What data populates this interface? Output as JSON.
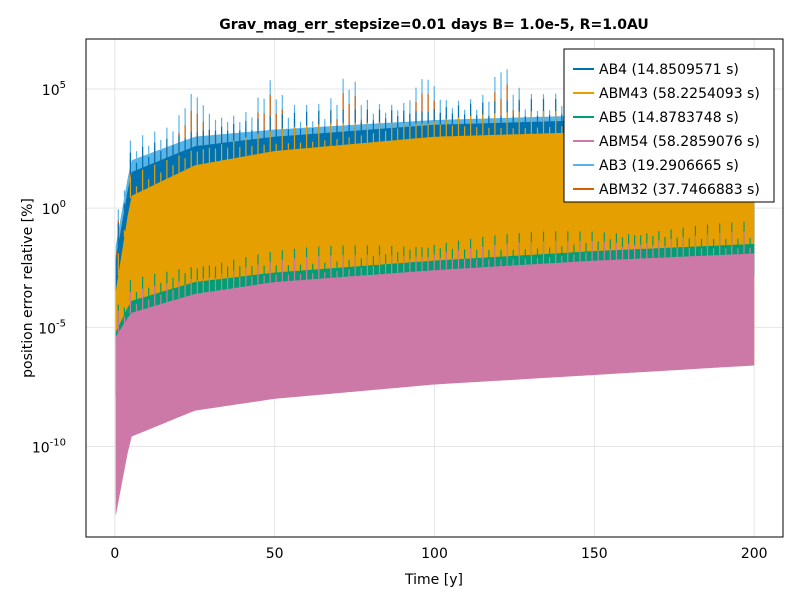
{
  "chart_data": {
    "type": "line",
    "title": "Grav_mag_err_stepsize=0.01 days B= 1.0e-5, R=1.0AU",
    "xlabel": "Time [y]",
    "ylabel": "position error relative [%]",
    "xlim": [
      -9,
      209
    ],
    "ylim_log10": [
      -13.8,
      7.1
    ],
    "y_scale": "log",
    "x_ticks": [
      0,
      50,
      100,
      150,
      200
    ],
    "y_ticks": [
      {
        "exp": 5,
        "base": "10",
        "sup": "5"
      },
      {
        "exp": 0,
        "base": "10",
        "sup": "0"
      },
      {
        "exp": -5,
        "base": "10",
        "sup": "-5"
      },
      {
        "exp": -10,
        "base": "10",
        "sup": "-10"
      }
    ],
    "grid": true,
    "legend_position": "top-right",
    "series": [
      {
        "name": "AB4 (14.8509571 s)",
        "color": "#0072b2",
        "envelope_log10": {
          "x": [
            0.3,
            5,
            25,
            50,
            100,
            150,
            200
          ],
          "upper": [
            -2.2,
            1.5,
            2.6,
            3.0,
            3.5,
            3.7,
            3.6
          ],
          "lower": [
            -7.5,
            -5.5,
            -4.6,
            -4.1,
            -3.5,
            -3.0,
            -2.6
          ]
        }
      },
      {
        "name": "ABM43 (58.2254093 s)",
        "color": "#e69f00",
        "envelope_log10": {
          "x": [
            0.3,
            5,
            25,
            50,
            100,
            150,
            200
          ],
          "upper": [
            -3.5,
            0.5,
            1.8,
            2.4,
            3.0,
            3.2,
            3.2
          ],
          "lower": [
            -12.9,
            -9.5,
            -8.4,
            -7.9,
            -7.3,
            -6.9,
            -6.6
          ]
        }
      },
      {
        "name": "AB5 (14.8783748 s)",
        "color": "#009e73",
        "envelope_log10": {
          "x": [
            0.3,
            5,
            25,
            50,
            100,
            150,
            200
          ],
          "upper": [
            -5.2,
            -3.9,
            -3.1,
            -2.7,
            -2.2,
            -1.8,
            -1.5
          ],
          "lower": [
            -8.0,
            -5.6,
            -4.8,
            -4.3,
            -3.6,
            -3.1,
            -2.8
          ]
        }
      },
      {
        "name": "ABM54 (58.2859076 s)",
        "color": "#cc79a7",
        "envelope_log10": {
          "x": [
            0.3,
            5,
            25,
            50,
            100,
            150,
            200
          ],
          "upper": [
            -5.4,
            -4.4,
            -3.6,
            -3.1,
            -2.6,
            -2.2,
            -1.9
          ],
          "lower": [
            -12.9,
            -9.6,
            -8.5,
            -8.0,
            -7.4,
            -7.0,
            -6.6
          ]
        }
      },
      {
        "name": "AB3 (19.2906665 s)",
        "color": "#56b4e9",
        "envelope_log10": {
          "x": [
            0.3,
            5,
            25,
            50,
            100,
            150,
            200
          ],
          "upper": [
            -1.6,
            2.0,
            3.0,
            3.3,
            3.7,
            3.9,
            3.8
          ],
          "lower": [
            -7.3,
            -5.6,
            -4.8,
            -4.3,
            -3.7,
            -3.2,
            -2.8
          ]
        },
        "peaks": [
          {
            "x": 24.5,
            "log10": 4.2
          },
          {
            "x": 48.5,
            "log10": 4.7
          },
          {
            "x": 73,
            "log10": 4.9
          },
          {
            "x": 97,
            "log10": 5.3
          },
          {
            "x": 121.5,
            "log10": 5.7
          },
          {
            "x": 146,
            "log10": 4.8
          },
          {
            "x": 170,
            "log10": 4.6
          },
          {
            "x": 194.5,
            "log10": 4.5
          }
        ]
      },
      {
        "name": "ABM32 (37.7466883 s)",
        "color": "#d55e00",
        "envelope_log10": {
          "x": [
            0.3,
            5,
            25,
            50,
            100,
            150,
            200
          ],
          "upper": [
            -2.0,
            1.2,
            2.3,
            2.7,
            3.1,
            3.2,
            3.1
          ],
          "lower": [
            -7.2,
            -4.5,
            -3.3,
            -2.8,
            -2.2,
            -1.8,
            -1.5
          ]
        },
        "peaks": [
          {
            "x": 24.5,
            "log10": 3.5
          },
          {
            "x": 48.5,
            "log10": 3.6
          },
          {
            "x": 73,
            "log10": 3.8
          },
          {
            "x": 97,
            "log10": 4.2
          },
          {
            "x": 121.5,
            "log10": 4.4
          },
          {
            "x": 146,
            "log10": 3.9
          },
          {
            "x": 170,
            "log10": 3.7
          }
        ]
      }
    ],
    "draw_order": [
      "AB3 (19.2906665 s)",
      "ABM32 (37.7466883 s)",
      "AB4 (14.8509571 s)",
      "ABM43 (58.2254093 s)",
      "AB5 (14.8783748 s)",
      "ABM54 (58.2859076 s)"
    ]
  }
}
